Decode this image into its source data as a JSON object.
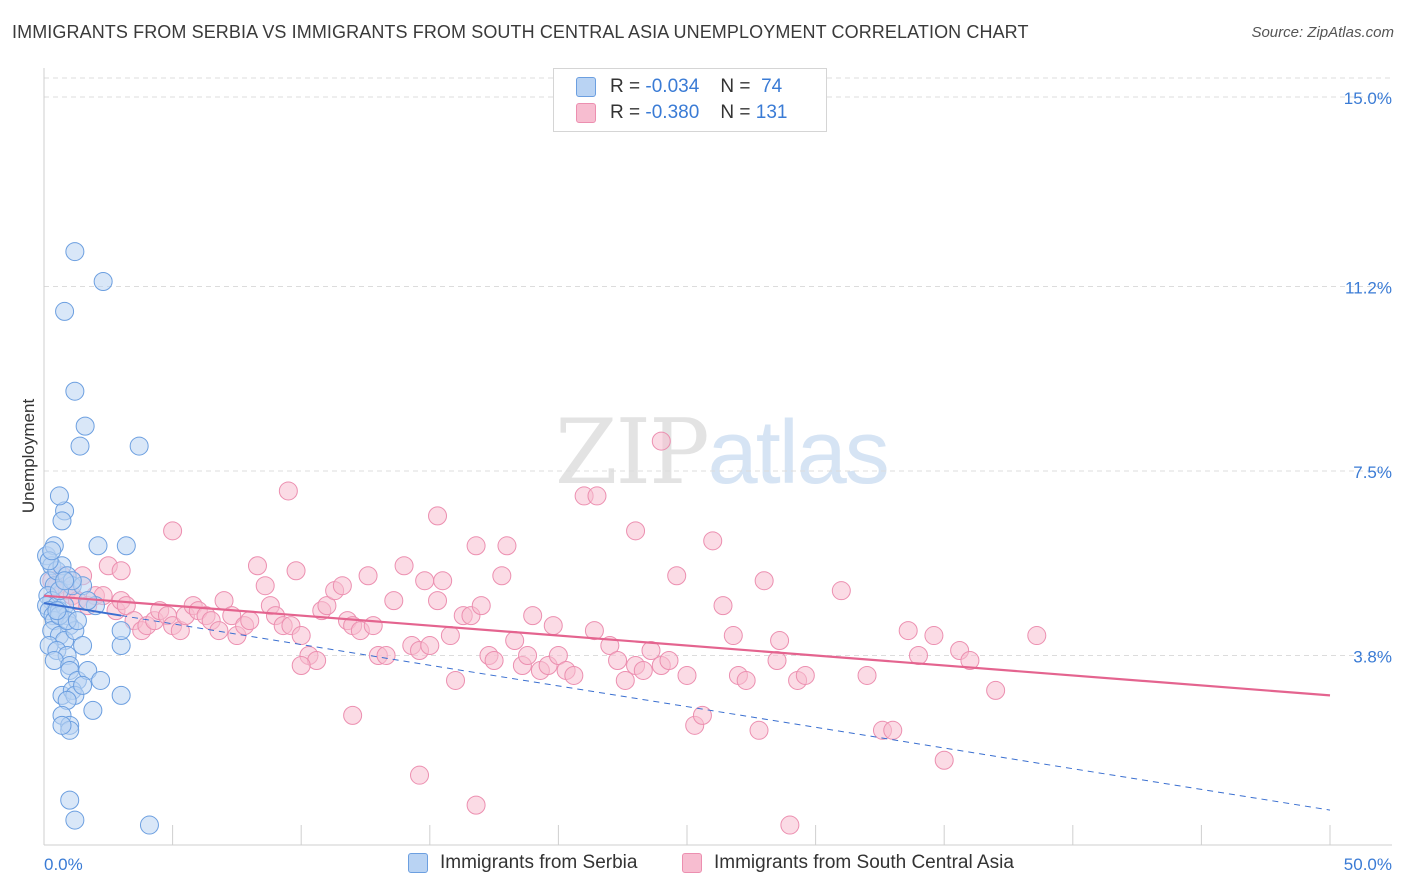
{
  "title": "IMMIGRANTS FROM SERBIA VS IMMIGRANTS FROM SOUTH CENTRAL ASIA UNEMPLOYMENT CORRELATION CHART",
  "source": "Source: ZipAtlas.com",
  "watermark": {
    "zip": "ZIP",
    "atlas": "atlas"
  },
  "legend": {
    "rows": [
      {
        "r_label": "R =",
        "r_value": "-0.034",
        "n_label": "N =",
        "n_value": "74"
      },
      {
        "r_label": "R =",
        "r_value": "-0.380",
        "n_label": "N =",
        "n_value": "131"
      }
    ]
  },
  "colors": {
    "serbia_fill": "#b9d3f3",
    "serbia_stroke": "#6c9fe0",
    "serbia_line": "#3a6fd0",
    "sca_fill": "#f7bdd0",
    "sca_stroke": "#ec8fb0",
    "sca_line": "#e4648f",
    "grid": "#dcdcdc",
    "tick_text": "#3a7bd5"
  },
  "chart_data": {
    "type": "scatter",
    "title": "IMMIGRANTS FROM SERBIA VS IMMIGRANTS FROM SOUTH CENTRAL ASIA UNEMPLOYMENT CORRELATION CHART",
    "xlabel": "",
    "ylabel": "Unemployment",
    "xlim": [
      0,
      50
    ],
    "ylim": [
      0,
      15.0
    ],
    "y_ticks": [
      3.8,
      7.5,
      11.2,
      15.0
    ],
    "y_tick_labels": [
      "3.8%",
      "7.5%",
      "11.2%",
      "15.0%"
    ],
    "x_tick_labels": [
      "0.0%",
      "50.0%"
    ],
    "grid": true,
    "legend_position": "top-center",
    "series": [
      {
        "name": "Immigrants from Serbia",
        "points": [
          [
            0.1,
            5.8
          ],
          [
            0.3,
            5.6
          ],
          [
            0.2,
            5.3
          ],
          [
            0.4,
            5.2
          ],
          [
            0.15,
            5.0
          ],
          [
            0.3,
            4.9
          ],
          [
            0.1,
            4.8
          ],
          [
            0.5,
            4.8
          ],
          [
            0.2,
            4.7
          ],
          [
            0.35,
            4.6
          ],
          [
            0.6,
            4.7
          ],
          [
            0.8,
            4.8
          ],
          [
            0.9,
            4.6
          ],
          [
            0.5,
            5.5
          ],
          [
            0.7,
            5.6
          ],
          [
            0.9,
            5.4
          ],
          [
            1.1,
            5.2
          ],
          [
            0.6,
            5.1
          ],
          [
            0.4,
            4.5
          ],
          [
            1.0,
            4.4
          ],
          [
            0.3,
            4.3
          ],
          [
            0.6,
            4.2
          ],
          [
            0.8,
            4.1
          ],
          [
            0.2,
            4.0
          ],
          [
            0.5,
            3.9
          ],
          [
            1.2,
            4.3
          ],
          [
            1.5,
            4.0
          ],
          [
            0.9,
            3.8
          ],
          [
            0.4,
            3.7
          ],
          [
            1.0,
            3.6
          ],
          [
            1.0,
            3.5
          ],
          [
            1.3,
            3.3
          ],
          [
            1.7,
            3.5
          ],
          [
            2.2,
            3.3
          ],
          [
            0.7,
            3.0
          ],
          [
            1.1,
            3.1
          ],
          [
            1.2,
            3.0
          ],
          [
            1.5,
            3.2
          ],
          [
            0.9,
            2.9
          ],
          [
            3.0,
            3.0
          ],
          [
            0.7,
            2.6
          ],
          [
            1.0,
            2.4
          ],
          [
            1.0,
            2.3
          ],
          [
            1.9,
            2.7
          ],
          [
            0.8,
            6.7
          ],
          [
            0.6,
            7.0
          ],
          [
            0.7,
            6.5
          ],
          [
            1.4,
            8.0
          ],
          [
            1.6,
            8.4
          ],
          [
            3.7,
            8.0
          ],
          [
            1.2,
            9.1
          ],
          [
            0.8,
            10.7
          ],
          [
            1.2,
            11.9
          ],
          [
            2.3,
            11.3
          ],
          [
            2.1,
            6.0
          ],
          [
            3.2,
            6.0
          ],
          [
            1.5,
            5.2
          ],
          [
            2.0,
            4.8
          ],
          [
            3.0,
            4.0
          ],
          [
            3.0,
            4.3
          ],
          [
            0.4,
            6.0
          ],
          [
            0.2,
            5.7
          ],
          [
            0.6,
            4.6
          ],
          [
            0.9,
            4.5
          ],
          [
            1.3,
            4.5
          ],
          [
            1.7,
            4.9
          ],
          [
            0.5,
            4.7
          ],
          [
            1.1,
            5.3
          ],
          [
            0.8,
            5.3
          ],
          [
            0.7,
            2.4
          ],
          [
            1.0,
            0.9
          ],
          [
            1.2,
            0.5
          ],
          [
            4.1,
            0.4
          ],
          [
            0.3,
            5.9
          ]
        ]
      },
      {
        "name": "Immigrants from South Central Asia",
        "points": [
          [
            0.3,
            5.3
          ],
          [
            0.5,
            5.2
          ],
          [
            0.7,
            5.4
          ],
          [
            0.9,
            5.1
          ],
          [
            1.1,
            5.0
          ],
          [
            1.3,
            4.9
          ],
          [
            1.5,
            5.4
          ],
          [
            1.7,
            4.8
          ],
          [
            2.0,
            5.0
          ],
          [
            2.3,
            5.0
          ],
          [
            2.5,
            5.6
          ],
          [
            2.8,
            4.7
          ],
          [
            3.0,
            4.9
          ],
          [
            3.2,
            4.8
          ],
          [
            3.5,
            4.5
          ],
          [
            3.8,
            4.3
          ],
          [
            4.0,
            4.4
          ],
          [
            4.3,
            4.5
          ],
          [
            4.5,
            4.7
          ],
          [
            4.8,
            4.6
          ],
          [
            5.0,
            4.4
          ],
          [
            5.3,
            4.3
          ],
          [
            5.5,
            4.6
          ],
          [
            5.8,
            4.8
          ],
          [
            6.0,
            4.7
          ],
          [
            6.3,
            4.6
          ],
          [
            6.5,
            4.5
          ],
          [
            6.8,
            4.3
          ],
          [
            7.0,
            4.9
          ],
          [
            7.3,
            4.6
          ],
          [
            7.5,
            4.2
          ],
          [
            7.8,
            4.4
          ],
          [
            8.0,
            4.5
          ],
          [
            8.3,
            5.6
          ],
          [
            8.6,
            5.2
          ],
          [
            8.8,
            4.8
          ],
          [
            9.0,
            4.6
          ],
          [
            9.3,
            4.4
          ],
          [
            9.6,
            4.4
          ],
          [
            9.8,
            5.5
          ],
          [
            10.0,
            4.2
          ],
          [
            10.3,
            3.8
          ],
          [
            10.6,
            3.7
          ],
          [
            10.8,
            4.7
          ],
          [
            11.0,
            4.8
          ],
          [
            11.3,
            5.1
          ],
          [
            11.6,
            5.2
          ],
          [
            11.8,
            4.5
          ],
          [
            12.0,
            4.4
          ],
          [
            12.3,
            4.3
          ],
          [
            12.6,
            5.4
          ],
          [
            12.8,
            4.4
          ],
          [
            13.0,
            3.8
          ],
          [
            13.3,
            3.8
          ],
          [
            13.6,
            4.9
          ],
          [
            14.0,
            5.6
          ],
          [
            14.3,
            4.0
          ],
          [
            14.6,
            3.9
          ],
          [
            14.8,
            5.3
          ],
          [
            15.0,
            4.0
          ],
          [
            15.3,
            4.9
          ],
          [
            15.5,
            5.3
          ],
          [
            15.8,
            4.2
          ],
          [
            16.0,
            3.3
          ],
          [
            16.3,
            4.6
          ],
          [
            16.6,
            4.6
          ],
          [
            16.8,
            6.0
          ],
          [
            17.0,
            4.8
          ],
          [
            17.3,
            3.8
          ],
          [
            17.5,
            3.7
          ],
          [
            17.8,
            5.4
          ],
          [
            18.0,
            6.0
          ],
          [
            18.3,
            4.1
          ],
          [
            18.6,
            3.6
          ],
          [
            18.8,
            3.8
          ],
          [
            19.0,
            4.6
          ],
          [
            19.3,
            3.5
          ],
          [
            19.6,
            3.6
          ],
          [
            19.8,
            4.4
          ],
          [
            20.0,
            3.8
          ],
          [
            20.3,
            3.5
          ],
          [
            20.6,
            3.4
          ],
          [
            21.0,
            7.0
          ],
          [
            21.4,
            4.3
          ],
          [
            22.0,
            4.0
          ],
          [
            22.3,
            3.7
          ],
          [
            22.6,
            3.3
          ],
          [
            23.0,
            3.6
          ],
          [
            23.3,
            3.5
          ],
          [
            23.6,
            3.9
          ],
          [
            24.0,
            3.6
          ],
          [
            24.3,
            3.7
          ],
          [
            24.6,
            5.4
          ],
          [
            25.0,
            3.4
          ],
          [
            25.3,
            2.4
          ],
          [
            25.6,
            2.6
          ],
          [
            26.0,
            6.1
          ],
          [
            26.4,
            4.8
          ],
          [
            26.8,
            4.2
          ],
          [
            27.0,
            3.4
          ],
          [
            27.3,
            3.3
          ],
          [
            27.8,
            2.3
          ],
          [
            28.0,
            5.3
          ],
          [
            28.6,
            4.1
          ],
          [
            29.0,
            0.4
          ],
          [
            29.3,
            3.3
          ],
          [
            29.6,
            3.4
          ],
          [
            31.0,
            5.1
          ],
          [
            32.0,
            3.4
          ],
          [
            32.6,
            2.3
          ],
          [
            33.0,
            2.3
          ],
          [
            33.6,
            4.3
          ],
          [
            34.0,
            3.8
          ],
          [
            34.6,
            4.2
          ],
          [
            35.0,
            1.7
          ],
          [
            35.6,
            3.9
          ],
          [
            36.0,
            3.7
          ],
          [
            37.0,
            3.1
          ],
          [
            38.6,
            4.2
          ],
          [
            24.0,
            8.1
          ],
          [
            15.3,
            6.6
          ],
          [
            14.6,
            1.4
          ],
          [
            16.8,
            0.8
          ],
          [
            12.0,
            2.6
          ],
          [
            10.0,
            3.6
          ],
          [
            5.0,
            6.3
          ],
          [
            3.0,
            5.5
          ],
          [
            23.0,
            6.3
          ],
          [
            9.5,
            7.1
          ],
          [
            21.5,
            7.0
          ],
          [
            28.5,
            3.7
          ]
        ]
      }
    ],
    "trend_lines": [
      {
        "series": "Immigrants from Serbia",
        "style": "solid-then-dashed",
        "x": [
          0,
          50
        ],
        "y": [
          4.85,
          0.7
        ],
        "solid_until_x": 3.0
      },
      {
        "series": "Immigrants from South Central Asia",
        "style": "solid",
        "x": [
          0,
          50
        ],
        "y": [
          5.0,
          3.0
        ]
      }
    ]
  }
}
